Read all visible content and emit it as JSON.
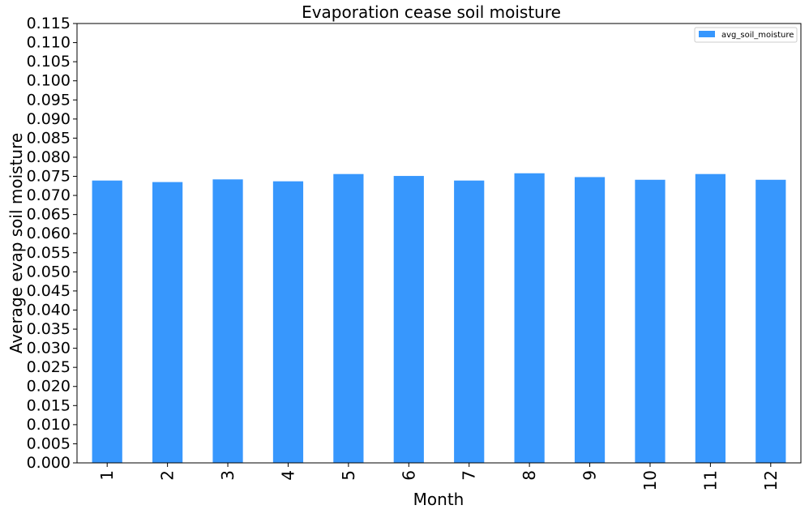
{
  "chart_data": {
    "type": "bar",
    "title": "Evaporation cease soil moisture",
    "xlabel": "Month",
    "ylabel": "Average evap soil moisture",
    "categories": [
      "1",
      "2",
      "3",
      "4",
      "5",
      "6",
      "7",
      "8",
      "9",
      "10",
      "11",
      "12"
    ],
    "series": [
      {
        "name": "avg_soil_moisture",
        "color": "#3797fd",
        "values": [
          0.0739,
          0.0735,
          0.0742,
          0.0737,
          0.0756,
          0.0751,
          0.0739,
          0.0758,
          0.0748,
          0.0741,
          0.0756,
          0.0741
        ]
      }
    ],
    "ylim": [
      0,
      0.115
    ],
    "yticks": [
      "0.000",
      "0.005",
      "0.010",
      "0.015",
      "0.020",
      "0.025",
      "0.030",
      "0.035",
      "0.040",
      "0.045",
      "0.050",
      "0.055",
      "0.060",
      "0.065",
      "0.070",
      "0.075",
      "0.080",
      "0.085",
      "0.090",
      "0.095",
      "0.100",
      "0.105",
      "0.110",
      "0.115"
    ],
    "xtick_rotation": "vertical",
    "grid": false,
    "legend_position": "top-right"
  }
}
